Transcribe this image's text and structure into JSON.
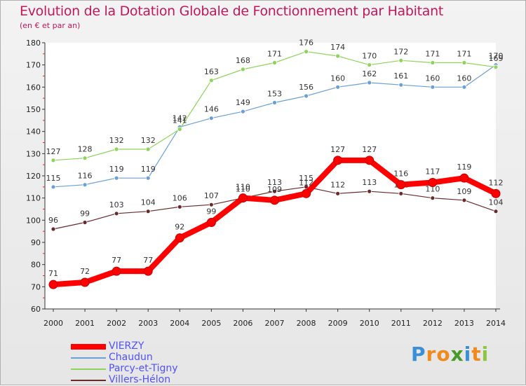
{
  "chart_data": {
    "type": "line",
    "title": "Evolution de la Dotation Globale de Fonctionnement par Habitant",
    "subtitle": "(en € et par an)",
    "xlabel": "",
    "ylabel": "",
    "x": [
      "2000",
      "2001",
      "2002",
      "2003",
      "2004",
      "2005",
      "2006",
      "2007",
      "2008",
      "2009",
      "2010",
      "2011",
      "2012",
      "2013",
      "2014"
    ],
    "ylim": [
      60,
      180
    ],
    "yticks": [
      60,
      70,
      80,
      90,
      100,
      110,
      120,
      130,
      140,
      150,
      160,
      170,
      180
    ],
    "grid": false,
    "legend_position": "bottom-left",
    "series": [
      {
        "name": "VIERZY",
        "color": "#ff0000",
        "values": [
          71,
          72,
          77,
          77,
          92,
          99,
          110,
          109,
          112,
          127,
          127,
          116,
          117,
          119,
          112
        ]
      },
      {
        "name": "Chaudun",
        "color": "#6aa0d8",
        "values": [
          115,
          116,
          119,
          119,
          142,
          146,
          149,
          153,
          156,
          160,
          162,
          161,
          160,
          160,
          170
        ]
      },
      {
        "name": "Parcy-et-Tigny",
        "color": "#8ed45a",
        "values": [
          127,
          128,
          132,
          132,
          141,
          163,
          168,
          171,
          176,
          174,
          170,
          172,
          171,
          171,
          169
        ]
      },
      {
        "name": "Villers-Hélon",
        "color": "#6b2a2a",
        "values": [
          96,
          99,
          103,
          104,
          106,
          107,
          110,
          113,
          115,
          112,
          113,
          112,
          110,
          109,
          104
        ]
      }
    ]
  },
  "logo": {
    "letters": [
      "P",
      "r",
      "o",
      "x",
      "i",
      "t",
      "i"
    ],
    "colors": [
      "#3a8fd6",
      "#f08a1c",
      "#f08a1c",
      "#4a9a2a",
      "#3a8fd6",
      "#f08a1c",
      "#8cc63f"
    ]
  }
}
